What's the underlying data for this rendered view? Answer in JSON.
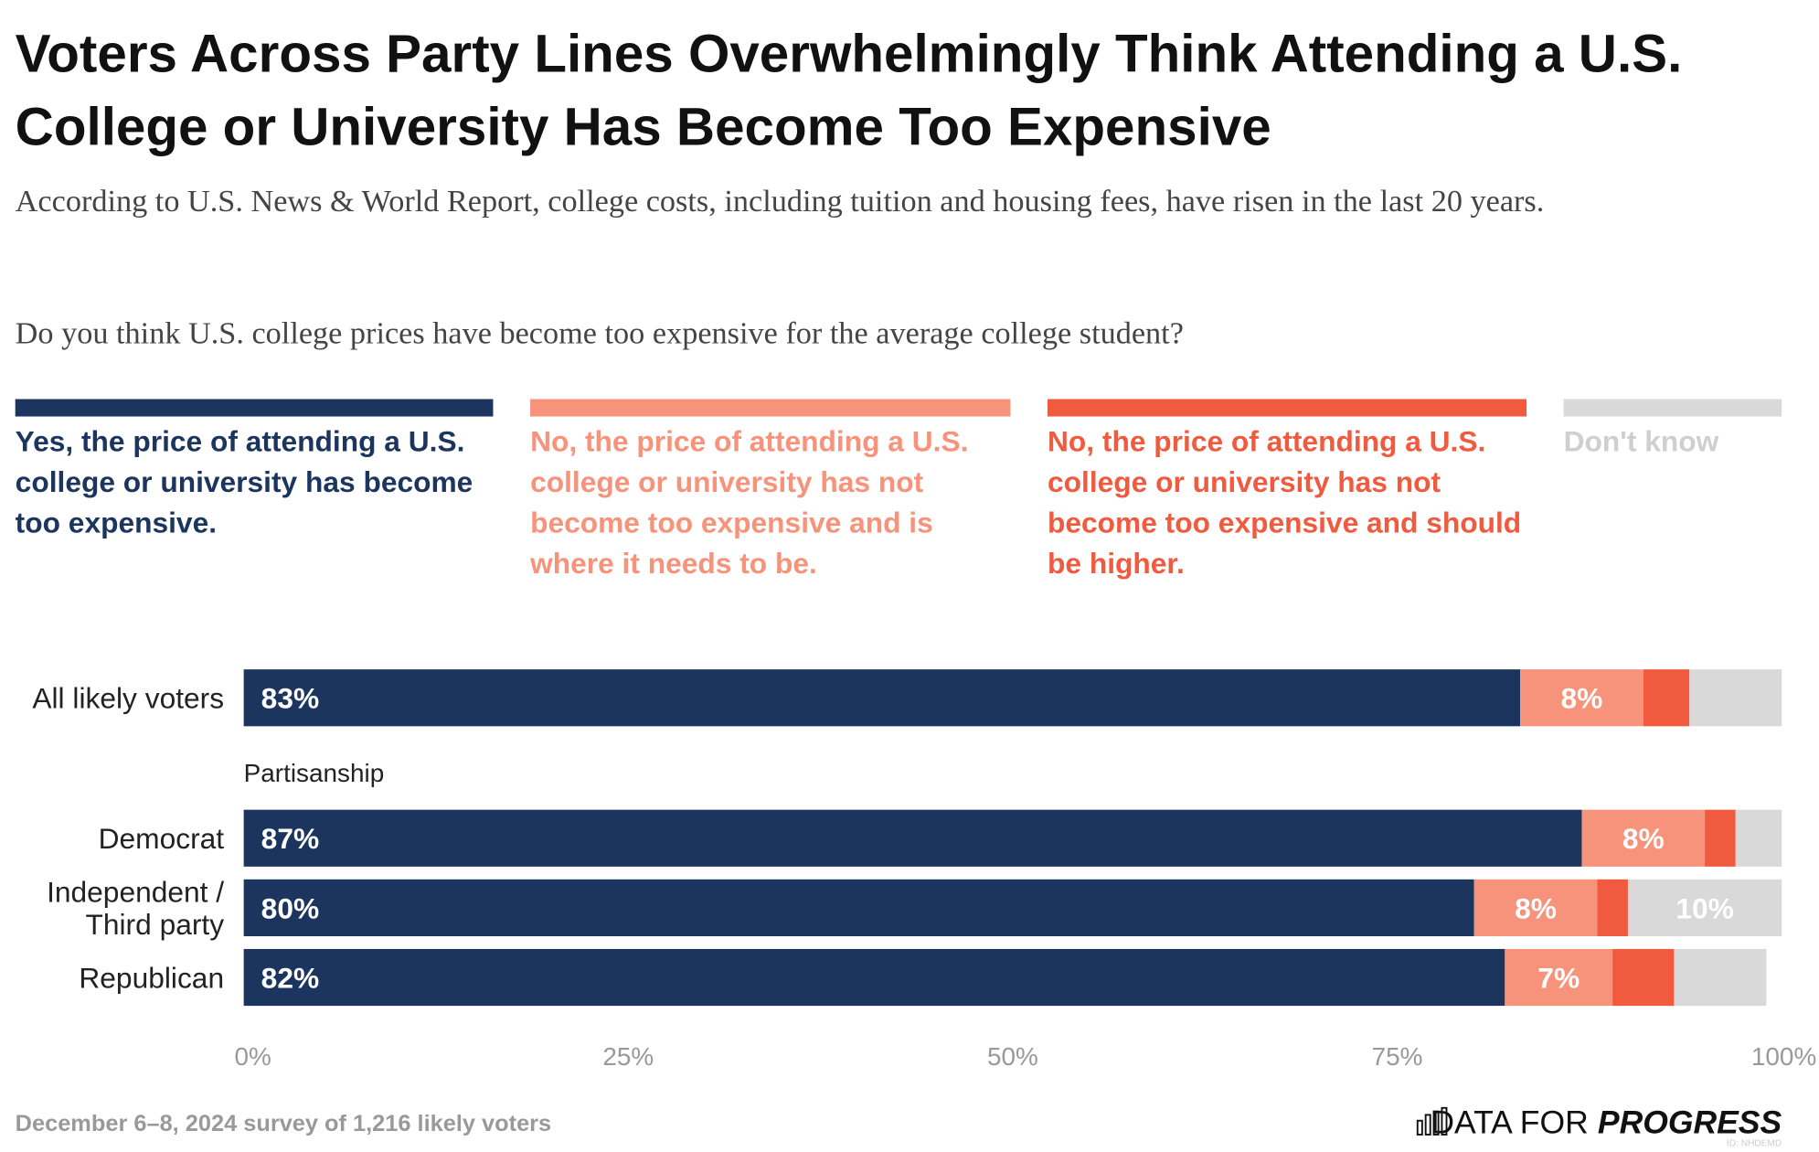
{
  "chart_data": {
    "type": "stacked_bar_horizontal",
    "title": "Voters Across Party Lines Overwhelmingly Think Attending a U.S. College or University Has Become Too Expensive",
    "subtitle": "According to U.S. News & World Report, college costs, including tuition and housing fees, have risen in the last 20 years.",
    "question": "Do you think U.S. college prices have become too expensive for the average college student?",
    "categories": [
      "All likely voters",
      "Democrat",
      "Independent / Third party",
      "Republican"
    ],
    "group_label": "Partisanship",
    "series": [
      {
        "name": "Yes, the price of attending a U.S. college or university has become too expensive.",
        "color": "#1c355e",
        "values": [
          83,
          87,
          80,
          82
        ],
        "value_labels": [
          "83%",
          "87%",
          "80%",
          "82%"
        ]
      },
      {
        "name": "No, the price of attending a U.S. college or university has not become too expensive and is where it needs to be.",
        "color": "#f7937a",
        "values": [
          8,
          8,
          8,
          7
        ],
        "value_labels": [
          "8%",
          "8%",
          "8%",
          "7%"
        ]
      },
      {
        "name": "No, the price of attending a U.S. college or university has not become too expensive and should be higher.",
        "color": "#f05a3e",
        "values": [
          3,
          2,
          2,
          4
        ],
        "value_labels": [
          null,
          null,
          null,
          null
        ]
      },
      {
        "name": "Don't know",
        "color": "#d9d9d9",
        "values": [
          6,
          3,
          10,
          6
        ],
        "value_labels": [
          null,
          null,
          "10%",
          null
        ]
      }
    ],
    "xlim": [
      0,
      100
    ],
    "xticks": [
      {
        "value": 0,
        "label": "0%"
      },
      {
        "value": 25,
        "label": "25%"
      },
      {
        "value": 50,
        "label": "50%"
      },
      {
        "value": 75,
        "label": "75%"
      },
      {
        "value": 100,
        "label": "100%"
      }
    ],
    "source": "December 6–8, 2024 survey of 1,216 likely voters",
    "brand": [
      "DATA FOR",
      "PROGRESS"
    ],
    "id_note": "ID: NHDEMD"
  }
}
